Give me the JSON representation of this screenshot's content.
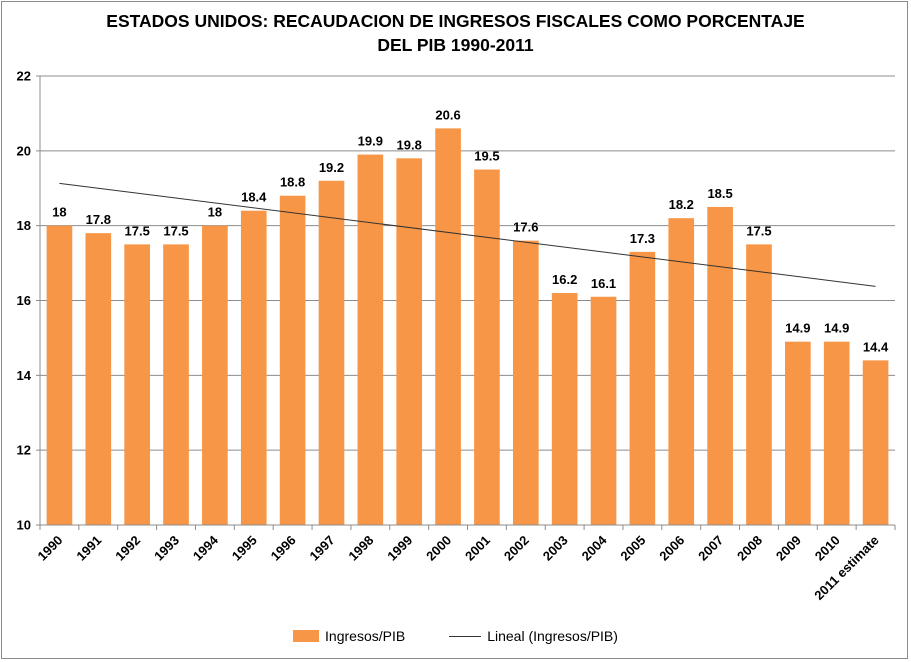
{
  "chart_data": {
    "type": "bar",
    "title": [
      "ESTADOS UNIDOS: RECAUDACION DE INGRESOS FISCALES COMO PORCENTAJE",
      "DEL PIB 1990-2011"
    ],
    "xlabel": "",
    "ylabel": "",
    "categories": [
      "1990",
      "1991",
      "1992",
      "1993",
      "1994",
      "1995",
      "1996",
      "1997",
      "1998",
      "1999",
      "2000",
      "2001",
      "2002",
      "2003",
      "2004",
      "2005",
      "2006",
      "2007",
      "2008",
      "2009",
      "2010",
      "2011 estimate"
    ],
    "series": [
      {
        "name": "Ingresos/PIB",
        "color": "#f79646",
        "values": [
          18,
          17.8,
          17.5,
          17.5,
          18,
          18.4,
          18.8,
          19.2,
          19.9,
          19.8,
          20.6,
          19.5,
          17.6,
          16.2,
          16.1,
          17.3,
          18.2,
          18.5,
          17.5,
          14.9,
          14.9,
          14.4
        ],
        "data_labels": [
          "18",
          "17.8",
          "17.5",
          "17.5",
          "18",
          "18.4",
          "18.8",
          "19.2",
          "19.9",
          "19.8",
          "20.6",
          "19.5",
          "17.6",
          "16.2",
          "16.1",
          "17.3",
          "18.2",
          "18.5",
          "17.5",
          "14.9",
          "14.9",
          "14.4"
        ]
      }
    ],
    "trendline": {
      "name": "Lineal (Ingresos/PIB)",
      "type": "linear",
      "color": "#333333"
    },
    "ylim": [
      10,
      22
    ],
    "yticks": [
      "10",
      "12",
      "14",
      "16",
      "18",
      "20",
      "22"
    ],
    "grid": true,
    "legend_position": "bottom"
  }
}
